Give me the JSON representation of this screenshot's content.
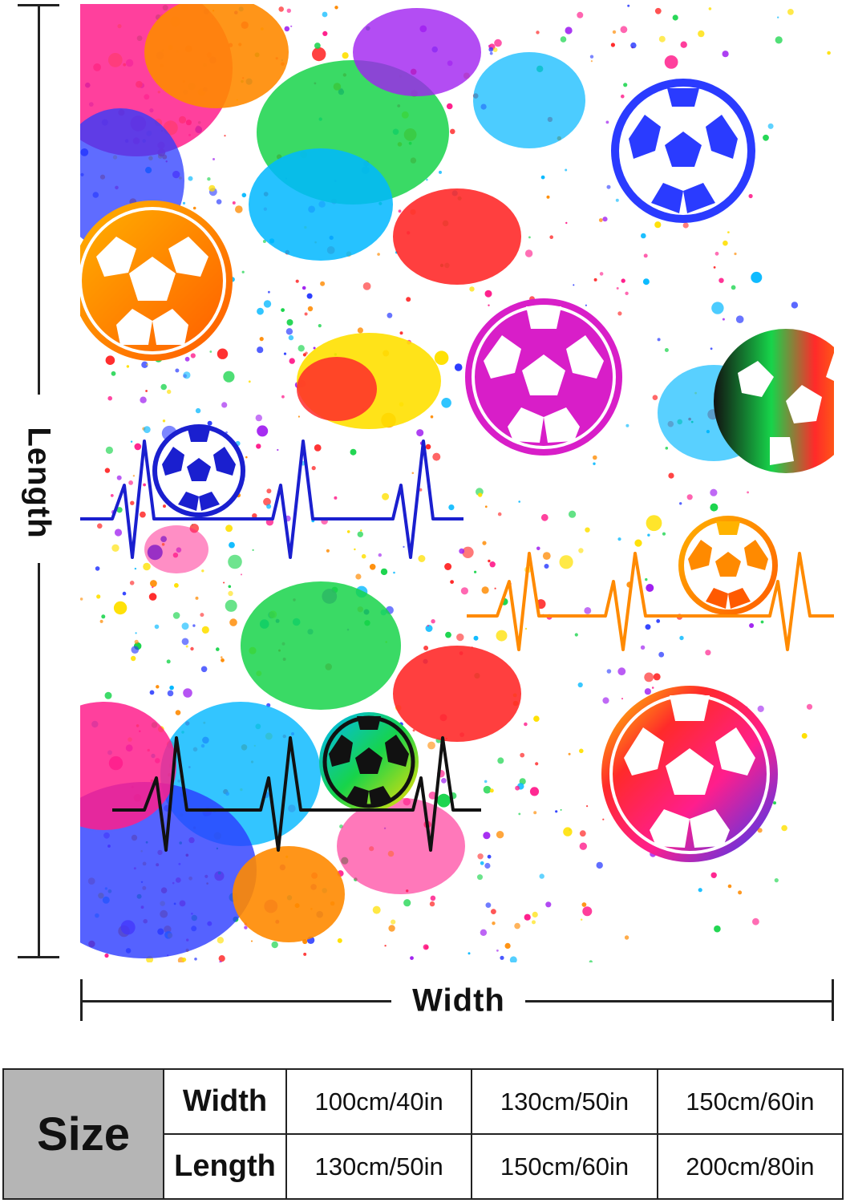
{
  "dimensions": {
    "length_label": "Length",
    "width_label": "Width"
  },
  "artwork": {
    "description_colors": [
      "#ff1e8c",
      "#ff8a00",
      "#ffe000",
      "#17d44a",
      "#00b7ff",
      "#2a3bff",
      "#a020f0",
      "#ff2a2a"
    ],
    "heartbeat_colors": [
      "#1a1fcf",
      "#ff8a00",
      "#111111"
    ]
  },
  "size_table": {
    "header": "Size",
    "rows": [
      {
        "label": "Width",
        "values": [
          "100cm/40in",
          "130cm/50in",
          "150cm/60in"
        ]
      },
      {
        "label": "Length",
        "values": [
          "130cm/50in",
          "150cm/60in",
          "200cm/80in"
        ]
      }
    ]
  }
}
